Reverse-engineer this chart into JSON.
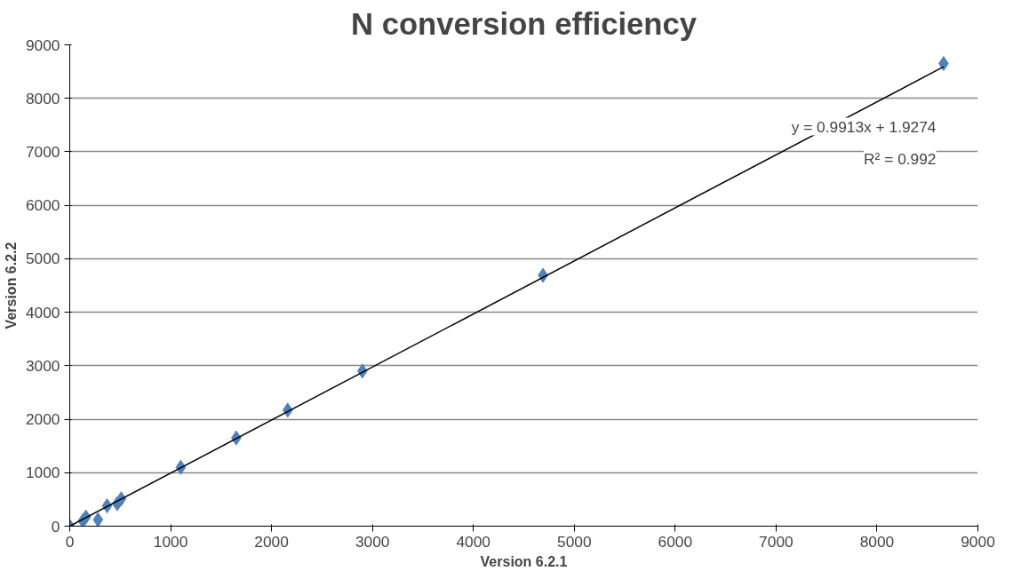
{
  "chart_data": {
    "type": "scatter",
    "title": "N conversion efficiency",
    "xlabel": "Version 6.2.1",
    "ylabel": "Version 6.2.2",
    "xlim": [
      0,
      9000
    ],
    "xticks": [
      0,
      1000,
      2000,
      3000,
      4000,
      5000,
      6000,
      7000,
      8000,
      9000
    ],
    "ylim": [
      0,
      9000
    ],
    "yticks": [
      0,
      1000,
      2000,
      3000,
      4000,
      5000,
      6000,
      7000,
      8000,
      9000
    ],
    "grid": "y",
    "series": [
      {
        "marker": "diamond",
        "color": "#4f81bd",
        "x": [
          0,
          130,
          160,
          280,
          370,
          470,
          510,
          1100,
          1650,
          2160,
          2900,
          4690,
          8660
        ],
        "values": [
          0,
          100,
          170,
          120,
          380,
          420,
          510,
          1100,
          1650,
          2170,
          2900,
          4690,
          8650
        ]
      },
      {
        "type": "line",
        "color": "#000000",
        "x": [
          0,
          8660
        ],
        "values": [
          0,
          8590
        ]
      }
    ],
    "annotations": [
      "y = 0.9913x + 1.9274",
      "R² = 0.992"
    ]
  }
}
